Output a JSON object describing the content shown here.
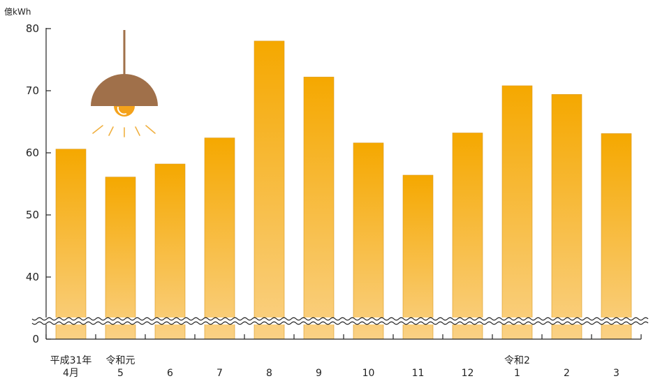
{
  "chart_data": {
    "type": "bar",
    "title": "",
    "ylabel": "億kWh",
    "xlabel": "",
    "categories": [
      "4月",
      "5",
      "6",
      "7",
      "8",
      "9",
      "10",
      "11",
      "12",
      "1",
      "2",
      "3"
    ],
    "category_prefixes": [
      "平成31年",
      "令和元",
      "",
      "",
      "",
      "",
      "",
      "",
      "",
      "令和2",
      "",
      ""
    ],
    "values": [
      60.6,
      56.1,
      58.2,
      62.4,
      78.0,
      72.2,
      61.6,
      56.4,
      63.2,
      70.8,
      69.4,
      63.1
    ],
    "yticks": [
      0,
      40,
      50,
      60,
      70,
      80
    ],
    "ylim": [
      0,
      80
    ],
    "axis_break": true,
    "grid": false,
    "colors": {
      "bar_top": "#f5a800",
      "bar_bottom": "#fad185",
      "axis": "#222222",
      "lamp": "#a0704a",
      "bulb": "#f4a21b",
      "rays": "#f0b040"
    },
    "decoration": "pendant-lamp-icon"
  }
}
